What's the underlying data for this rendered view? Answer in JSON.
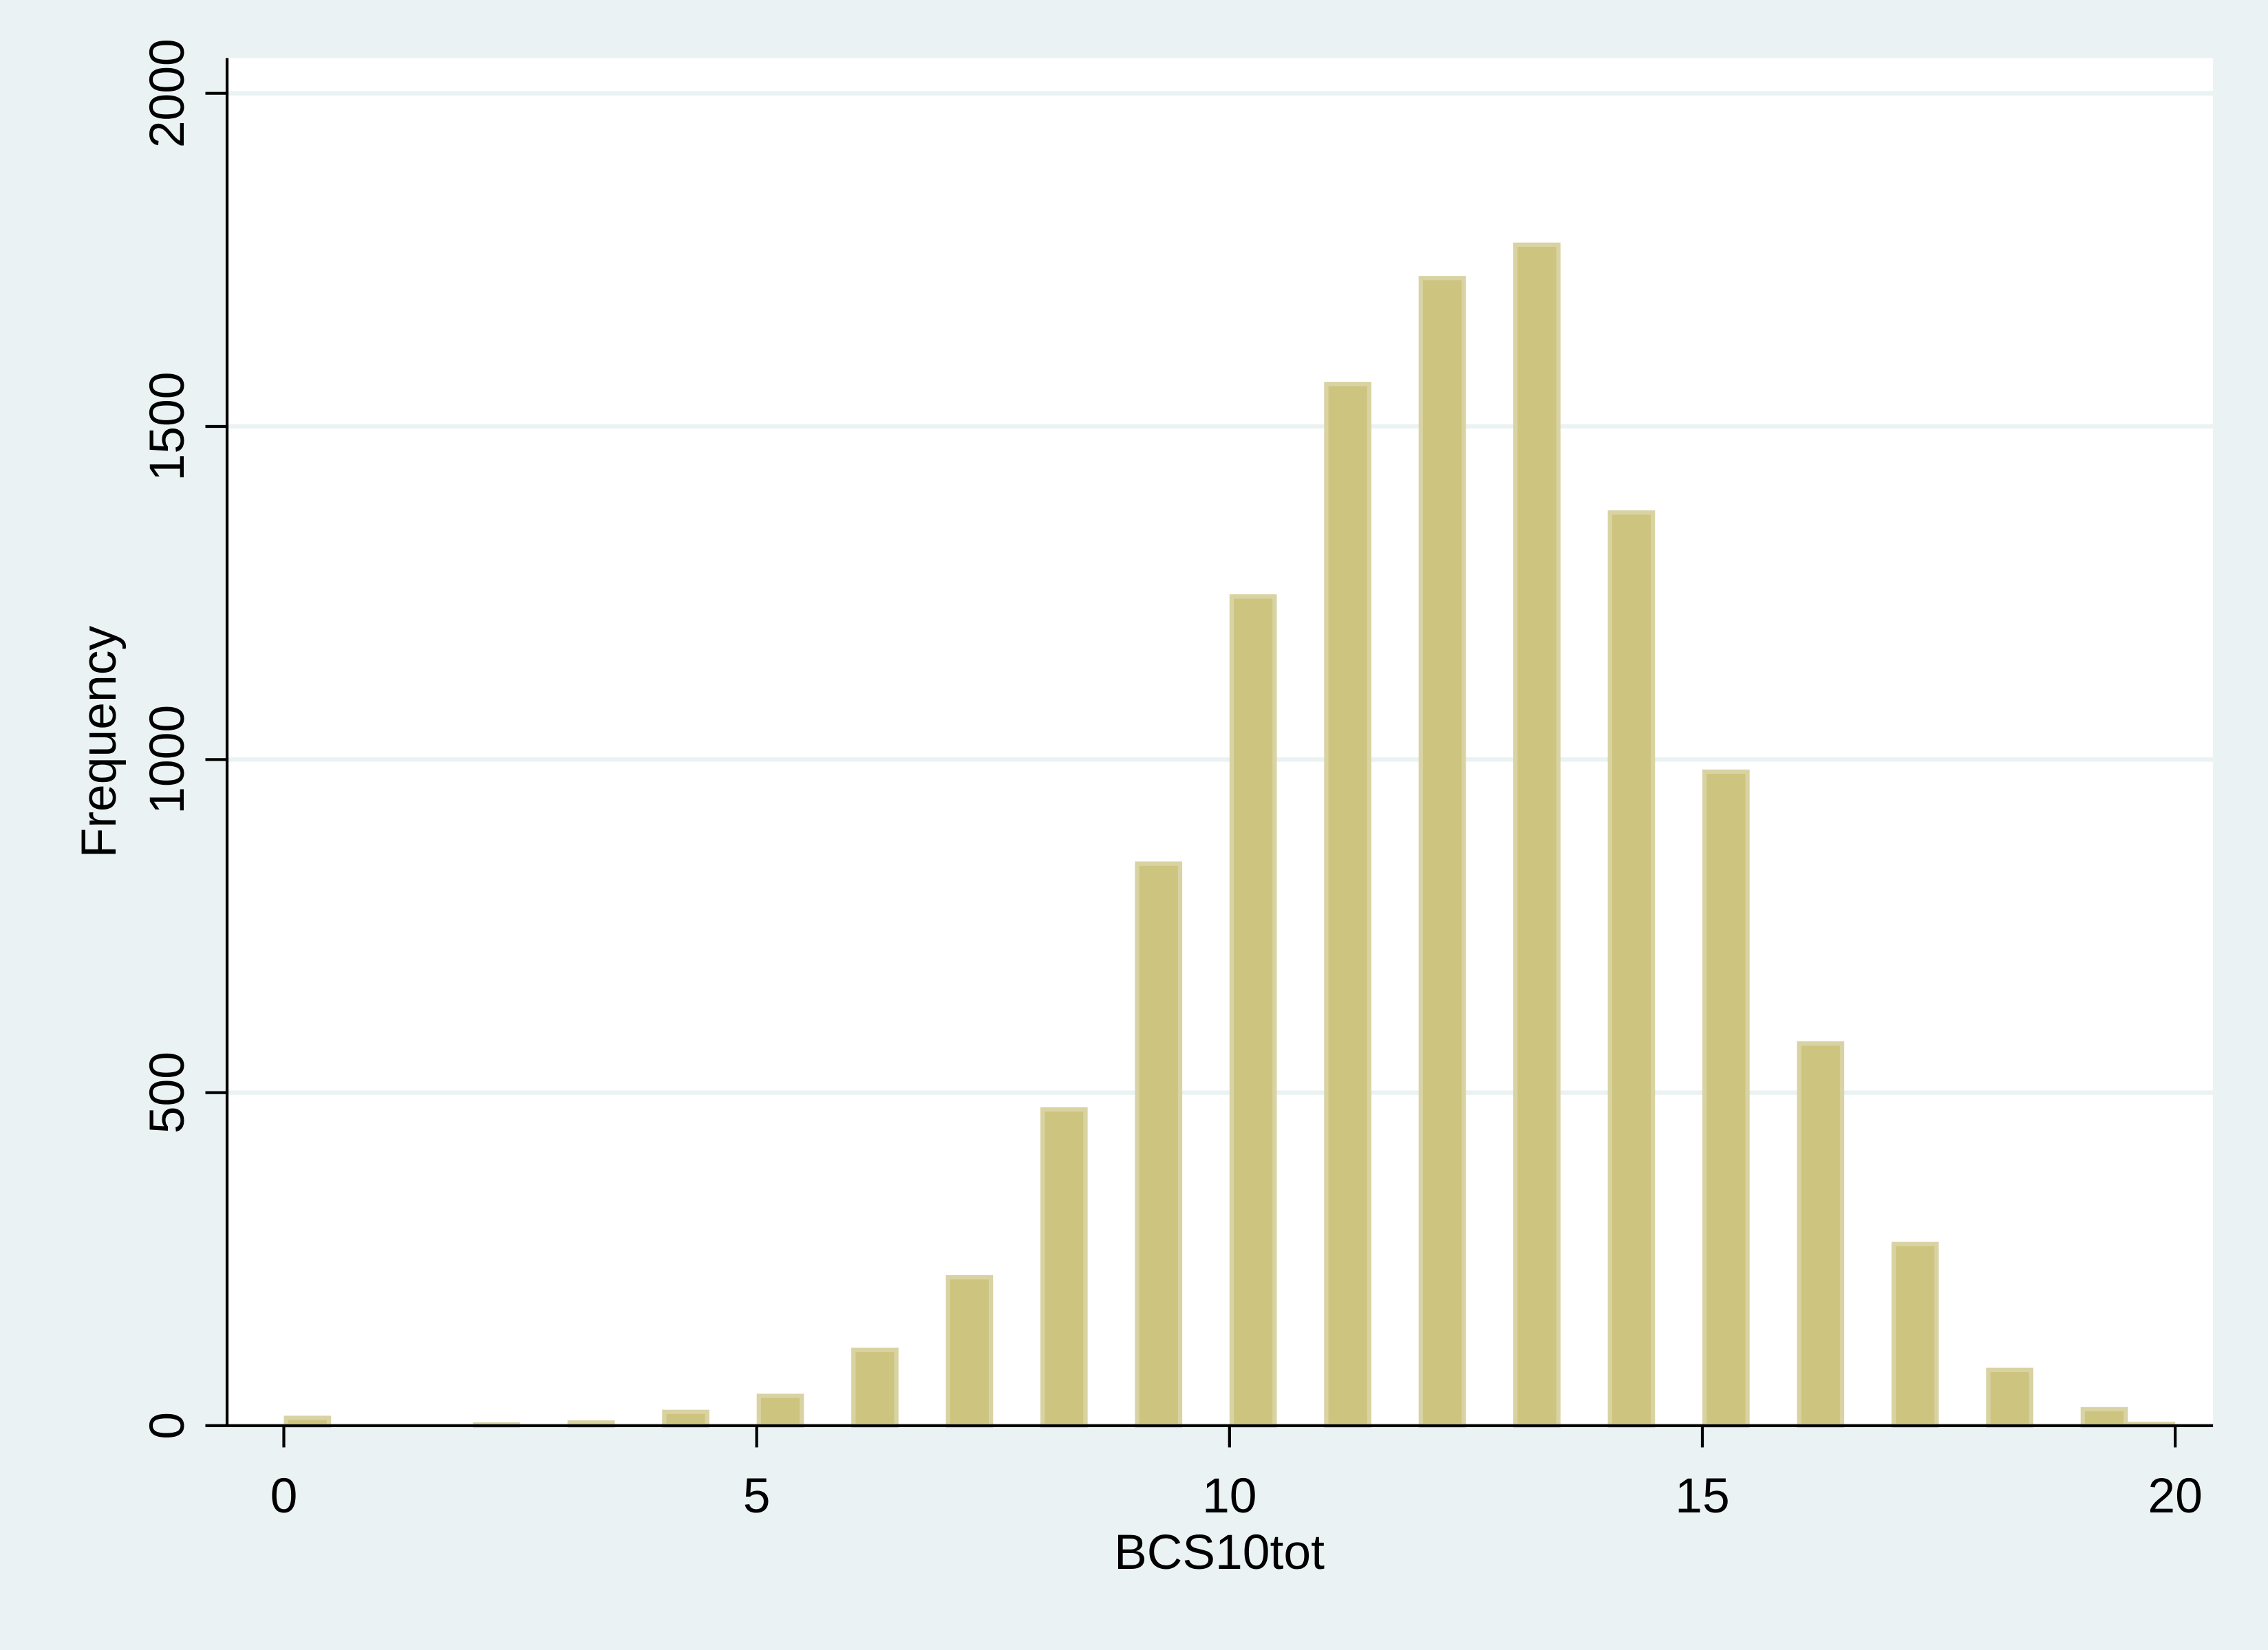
{
  "chart_data": {
    "type": "histogram",
    "x_label": "BCS10tot",
    "y_label": "Frequency",
    "x": [
      0,
      2,
      3,
      4,
      5,
      6,
      7,
      8,
      9,
      10,
      11,
      12,
      13,
      14,
      15,
      16,
      17,
      18,
      19,
      19.5
    ],
    "values": [
      15,
      5,
      8,
      24,
      48,
      117,
      226,
      478,
      847,
      1248,
      1567,
      1726,
      1776,
      1374,
      985,
      577,
      276,
      87,
      28,
      6
    ],
    "bar_width": 0.5,
    "color": "#cdc47f",
    "xlim": [
      -0.6,
      20.4
    ],
    "xticks": [
      0,
      5,
      10,
      15,
      20
    ],
    "ylim": [
      0,
      2053
    ],
    "yticks": [
      0,
      500,
      1000,
      1500,
      2000
    ],
    "grid": true
  }
}
